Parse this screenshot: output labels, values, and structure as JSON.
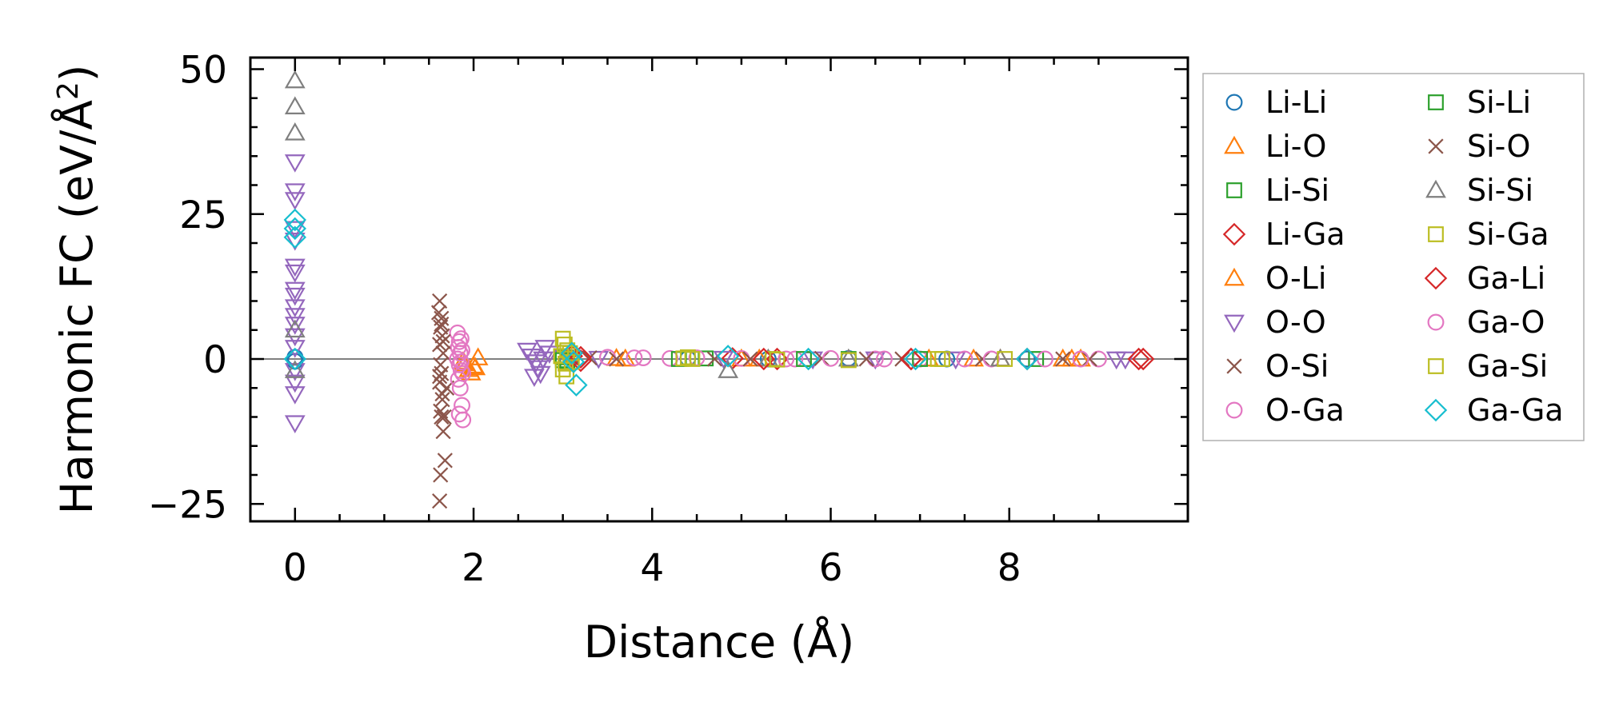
{
  "chart_data": {
    "type": "scatter",
    "title": "",
    "xlabel": "Distance (Å)",
    "ylabel_main": "Harmonic FC (eV/Å",
    "ylabel_sup": "2",
    "ylabel_end": ")",
    "xlim": [
      -0.5,
      10.0
    ],
    "ylim": [
      -28,
      52
    ],
    "xticks": [
      0,
      2,
      4,
      6,
      8
    ],
    "yticks": [
      -25,
      0,
      25,
      50
    ],
    "xtick_labels": [
      "0",
      "2",
      "4",
      "6",
      "8"
    ],
    "ytick_labels": [
      "−25",
      "0",
      "25",
      "50"
    ],
    "grid": false,
    "zero_line": true,
    "legend_position": "outside-right",
    "series": [
      {
        "name": "Li-Li",
        "marker": "circle",
        "color": "#1f77b4",
        "points": [
          [
            0,
            0.3
          ],
          [
            0,
            -0.4
          ],
          [
            3.1,
            0.2
          ],
          [
            4.4,
            0.1
          ],
          [
            5.3,
            0.0
          ],
          [
            6.2,
            0.1
          ],
          [
            7.3,
            0.0
          ],
          [
            8.2,
            0.0
          ]
        ]
      },
      {
        "name": "Li-O",
        "marker": "triangle-up",
        "color": "#ff7f0e",
        "points": [
          [
            1.9,
            -0.8
          ],
          [
            1.95,
            -1.8
          ],
          [
            2.0,
            -1.2
          ],
          [
            2.05,
            0.2
          ],
          [
            1.97,
            -2.4
          ],
          [
            3.6,
            0.1
          ],
          [
            5.0,
            0.0
          ],
          [
            7.6,
            0.0
          ],
          [
            7.9,
            0.0
          ],
          [
            8.7,
            0.0
          ],
          [
            8.8,
            0.0
          ]
        ]
      },
      {
        "name": "Li-Si",
        "marker": "square",
        "color": "#2ca02c",
        "points": [
          [
            3.0,
            0.3
          ],
          [
            3.05,
            -0.4
          ],
          [
            4.6,
            0.1
          ],
          [
            6.2,
            0.0
          ],
          [
            8.3,
            0.0
          ]
        ]
      },
      {
        "name": "Li-Ga",
        "marker": "diamond",
        "color": "#d62728",
        "points": [
          [
            3.1,
            0.5
          ],
          [
            3.2,
            -0.3
          ],
          [
            4.9,
            0.1
          ],
          [
            5.4,
            0.0
          ],
          [
            6.9,
            0.0
          ],
          [
            8.2,
            0.0
          ],
          [
            9.5,
            0.0
          ]
        ]
      },
      {
        "name": "O-Li",
        "marker": "triangle-up",
        "color": "#ff7f0e",
        "points": [
          [
            1.88,
            -0.5
          ],
          [
            2.02,
            -1.5
          ],
          [
            3.7,
            0.0
          ],
          [
            5.2,
            0.0
          ],
          [
            7.1,
            0.0
          ],
          [
            8.6,
            0.0
          ]
        ]
      },
      {
        "name": "O-O",
        "marker": "triangle-down",
        "color": "#9467bd",
        "points": [
          [
            0,
            34
          ],
          [
            0,
            29
          ],
          [
            0,
            27.5
          ],
          [
            0,
            22.5
          ],
          [
            0,
            20.5
          ],
          [
            0,
            16
          ],
          [
            0,
            15
          ],
          [
            0,
            12
          ],
          [
            0,
            11
          ],
          [
            0,
            9
          ],
          [
            0,
            7.5
          ],
          [
            0,
            6
          ],
          [
            0,
            4
          ],
          [
            0,
            2
          ],
          [
            0,
            -2
          ],
          [
            0,
            -4
          ],
          [
            0,
            -6
          ],
          [
            0,
            -11
          ],
          [
            2.6,
            1.5
          ],
          [
            2.65,
            0.5
          ],
          [
            2.7,
            -0.5
          ],
          [
            2.72,
            -1.5
          ],
          [
            2.75,
            -2.5
          ],
          [
            2.8,
            2.0
          ],
          [
            2.85,
            1.0
          ],
          [
            2.68,
            -3.0
          ],
          [
            2.78,
            0.0
          ],
          [
            3.4,
            0.1
          ],
          [
            4.8,
            0.1
          ],
          [
            5.8,
            0.0
          ],
          [
            6.5,
            0.0
          ],
          [
            7.4,
            0.0
          ],
          [
            9.2,
            0.0
          ],
          [
            9.3,
            0.0
          ]
        ]
      },
      {
        "name": "O-Si",
        "marker": "x",
        "color": "#8c564b",
        "points": [
          [
            1.62,
            10
          ],
          [
            1.64,
            7
          ],
          [
            1.63,
            5.5
          ],
          [
            1.65,
            4
          ],
          [
            1.62,
            2.5
          ],
          [
            1.66,
            1
          ],
          [
            1.63,
            -1
          ],
          [
            1.64,
            -2.5
          ],
          [
            1.62,
            -4
          ],
          [
            1.65,
            -6
          ],
          [
            1.63,
            -9
          ],
          [
            1.64,
            -10
          ],
          [
            1.66,
            -12.5
          ],
          [
            1.68,
            -17.5
          ],
          [
            1.63,
            -20
          ],
          [
            1.62,
            -24.5
          ],
          [
            1.7,
            -5
          ],
          [
            3.3,
            0.2
          ],
          [
            4.7,
            0.0
          ],
          [
            5.9,
            0.1
          ],
          [
            6.8,
            0.0
          ],
          [
            7.7,
            0.0
          ],
          [
            8.6,
            0.0
          ]
        ]
      },
      {
        "name": "O-Ga",
        "marker": "circle",
        "color": "#e377c2",
        "points": [
          [
            1.82,
            4.5
          ],
          [
            1.84,
            3
          ],
          [
            1.83,
            2
          ],
          [
            1.85,
            1
          ],
          [
            1.82,
            0
          ],
          [
            1.84,
            -1
          ],
          [
            1.86,
            -2
          ],
          [
            1.83,
            -3.5
          ],
          [
            1.85,
            -5
          ],
          [
            1.87,
            -8
          ],
          [
            1.84,
            -9.5
          ],
          [
            1.88,
            -10.5
          ],
          [
            3.5,
            0.3
          ],
          [
            3.8,
            0.2
          ],
          [
            4.2,
            0.1
          ],
          [
            4.5,
            0.2
          ],
          [
            5.0,
            0.1
          ],
          [
            5.6,
            0.0
          ],
          [
            6.0,
            0.1
          ],
          [
            6.5,
            0.0
          ],
          [
            6.6,
            0.0
          ],
          [
            7.0,
            0.0
          ],
          [
            7.8,
            0.0
          ],
          [
            8.4,
            0.0
          ],
          [
            9.0,
            0.0
          ]
        ]
      },
      {
        "name": "Si-Li",
        "marker": "square",
        "color": "#2ca02c",
        "points": [
          [
            3.0,
            -0.2
          ],
          [
            4.3,
            0.0
          ],
          [
            5.7,
            0.0
          ],
          [
            7.0,
            0.0
          ]
        ]
      },
      {
        "name": "Si-O",
        "marker": "x",
        "color": "#8c564b",
        "points": [
          [
            1.61,
            8
          ],
          [
            1.64,
            6
          ],
          [
            1.66,
            3
          ],
          [
            1.62,
            -3
          ],
          [
            1.65,
            -7
          ],
          [
            1.67,
            -10
          ],
          [
            3.6,
            0.0
          ],
          [
            5.1,
            0.0
          ],
          [
            6.4,
            0.0
          ],
          [
            8.9,
            0.0
          ]
        ]
      },
      {
        "name": "Si-Si",
        "marker": "triangle-up",
        "color": "#7f7f7f",
        "points": [
          [
            0,
            48
          ],
          [
            0,
            43.5
          ],
          [
            0,
            39
          ],
          [
            0,
            5
          ],
          [
            0,
            -2
          ],
          [
            3.05,
            0.5
          ],
          [
            4.85,
            -2.0
          ],
          [
            5.3,
            0.0
          ],
          [
            6.2,
            0.0
          ],
          [
            7.9,
            0.0
          ]
        ]
      },
      {
        "name": "Si-Ga",
        "marker": "square",
        "color": "#bcbd22",
        "points": [
          [
            3.0,
            3.5
          ],
          [
            3.02,
            2.5
          ],
          [
            3.05,
            1.5
          ],
          [
            2.98,
            0.5
          ],
          [
            3.03,
            -0.8
          ],
          [
            3.0,
            -1.8
          ],
          [
            3.04,
            -3
          ],
          [
            4.4,
            0.3
          ],
          [
            4.45,
            0.0
          ],
          [
            5.35,
            0.0
          ],
          [
            6.2,
            -0.2
          ],
          [
            7.2,
            0.0
          ],
          [
            7.95,
            0.0
          ]
        ]
      },
      {
        "name": "Ga-Li",
        "marker": "diamond",
        "color": "#d62728",
        "points": [
          [
            3.2,
            0.3
          ],
          [
            5.25,
            0.0
          ],
          [
            6.9,
            0.0
          ],
          [
            9.45,
            0.0
          ]
        ]
      },
      {
        "name": "Ga-O",
        "marker": "circle",
        "color": "#e377c2",
        "points": [
          [
            1.86,
            3.5
          ],
          [
            1.87,
            1.5
          ],
          [
            1.86,
            -0.5
          ],
          [
            1.88,
            -2.5
          ],
          [
            3.9,
            0.2
          ],
          [
            5.5,
            0.0
          ],
          [
            7.5,
            0.0
          ],
          [
            8.8,
            0.0
          ]
        ]
      },
      {
        "name": "Ga-Si",
        "marker": "square",
        "color": "#bcbd22",
        "points": [
          [
            3.08,
            1.0
          ],
          [
            3.1,
            -0.5
          ],
          [
            4.35,
            0.1
          ],
          [
            5.4,
            -0.1
          ],
          [
            7.25,
            0.0
          ]
        ]
      },
      {
        "name": "Ga-Ga",
        "marker": "diamond",
        "color": "#17becf",
        "points": [
          [
            0,
            24
          ],
          [
            0,
            22.5
          ],
          [
            0,
            21
          ],
          [
            0,
            0
          ],
          [
            3.1,
            1.0
          ],
          [
            3.12,
            -0.5
          ],
          [
            3.15,
            -4.5
          ],
          [
            4.85,
            0.5
          ],
          [
            5.75,
            0.0
          ],
          [
            6.95,
            0.0
          ],
          [
            8.2,
            0.0
          ]
        ]
      }
    ]
  }
}
